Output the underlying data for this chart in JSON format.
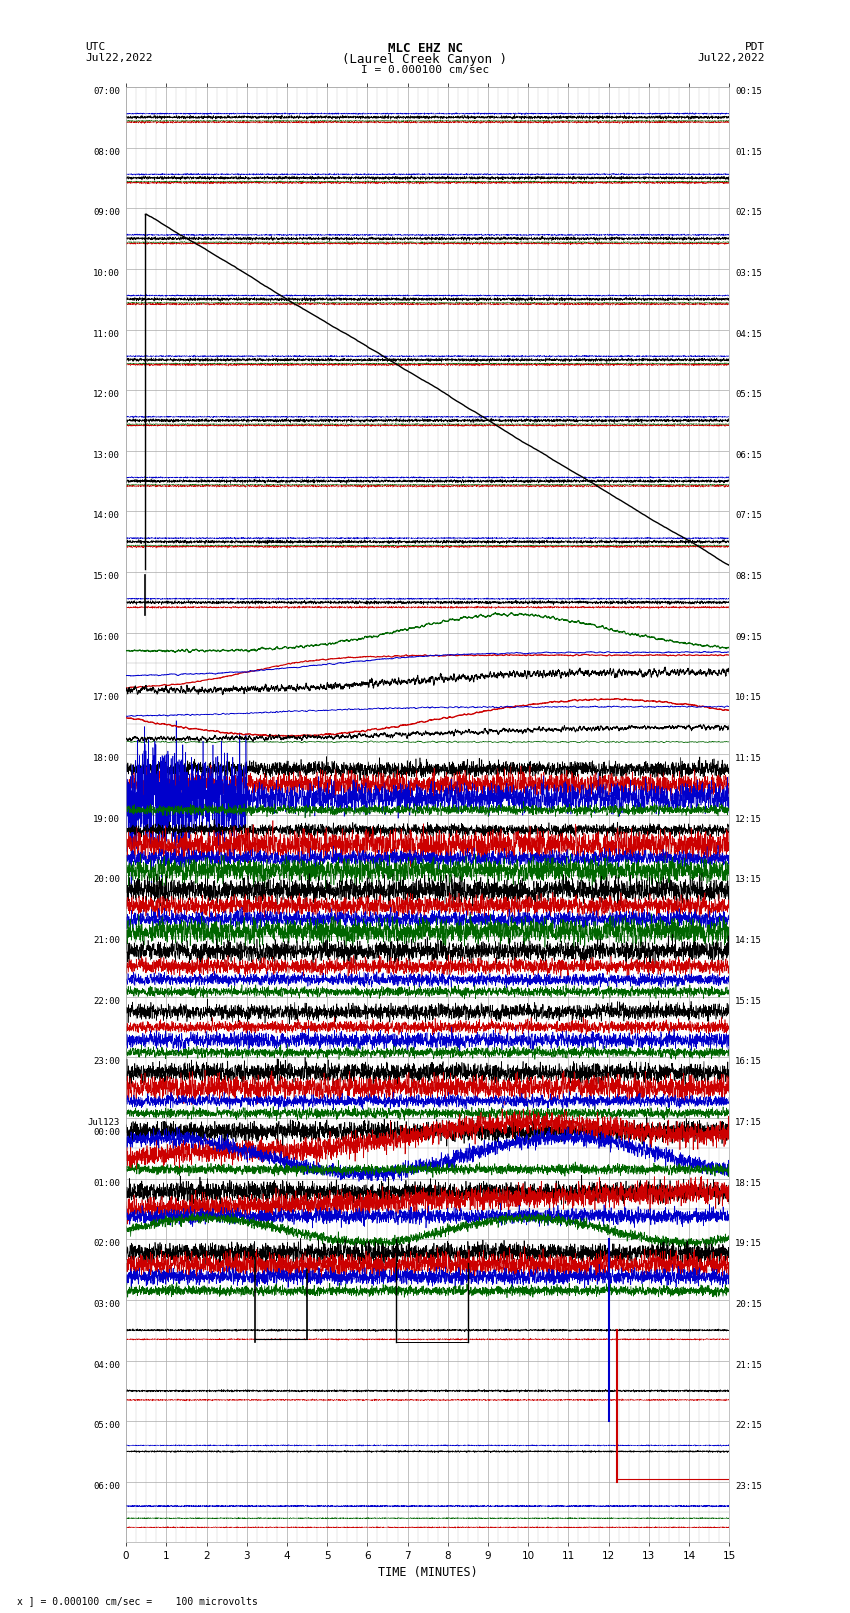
{
  "title_line1": "MLC EHZ NC",
  "title_line2": "(Laurel Creek Canyon )",
  "scale_label": "I = 0.000100 cm/sec",
  "utc_label": "UTC\nJul22,2022",
  "pdt_label": "PDT\nJul22,2022",
  "xlabel": "TIME (MINUTES)",
  "footer": "x ] = 0.000100 cm/sec =    100 microvolts",
  "xlim": [
    0,
    15
  ],
  "xticks": [
    0,
    1,
    2,
    3,
    4,
    5,
    6,
    7,
    8,
    9,
    10,
    11,
    12,
    13,
    14,
    15
  ],
  "utc_times": [
    "07:00",
    "08:00",
    "09:00",
    "10:00",
    "11:00",
    "12:00",
    "13:00",
    "14:00",
    "15:00",
    "16:00",
    "17:00",
    "18:00",
    "19:00",
    "20:00",
    "21:00",
    "22:00",
    "23:00",
    "Jul123\n00:00",
    "01:00",
    "02:00",
    "03:00",
    "04:00",
    "05:00",
    "06:00"
  ],
  "pdt_times": [
    "00:15",
    "01:15",
    "02:15",
    "03:15",
    "04:15",
    "05:15",
    "06:15",
    "07:15",
    "08:15",
    "09:15",
    "10:15",
    "11:15",
    "12:15",
    "13:15",
    "14:15",
    "15:15",
    "16:15",
    "17:15",
    "18:15",
    "19:15",
    "20:15",
    "21:15",
    "22:15",
    "23:15"
  ],
  "n_rows": 24,
  "bg_color": "white",
  "grid_color": "#aaaaaa",
  "black": "#000000",
  "red": "#cc0000",
  "blue": "#0000cc",
  "green": "#006600"
}
